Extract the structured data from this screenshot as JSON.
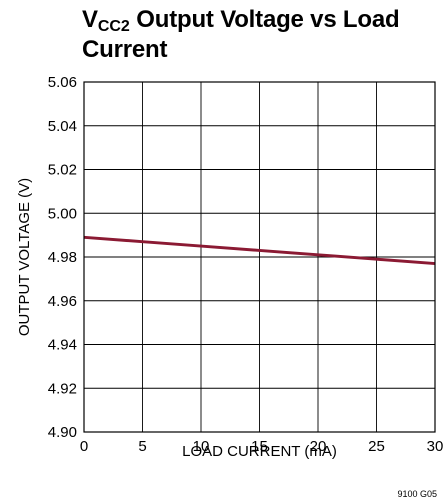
{
  "chart_data": {
    "type": "line",
    "title": {
      "main": "V",
      "subscript": "CC2",
      "rest": " Output Voltage vs Load Current"
    },
    "xlabel": "LOAD CURRENT (mA)",
    "ylabel": "OUTPUT VOLTAGE (V)",
    "xlim": [
      0,
      30
    ],
    "ylim": [
      4.9,
      5.06
    ],
    "x_ticks": [
      "0",
      "5",
      "10",
      "15",
      "20",
      "25",
      "30"
    ],
    "y_ticks": [
      "5.06",
      "5.04",
      "5.02",
      "5.00",
      "4.98",
      "4.96",
      "4.94",
      "4.92",
      "4.90"
    ],
    "grid": true,
    "series": [
      {
        "color": "#8b1a33",
        "x": [
          0,
          5,
          10,
          15,
          20,
          25,
          30
        ],
        "y": [
          4.989,
          4.987,
          4.985,
          4.983,
          4.981,
          4.979,
          4.977
        ]
      }
    ],
    "figure_code": "9100 G05"
  }
}
